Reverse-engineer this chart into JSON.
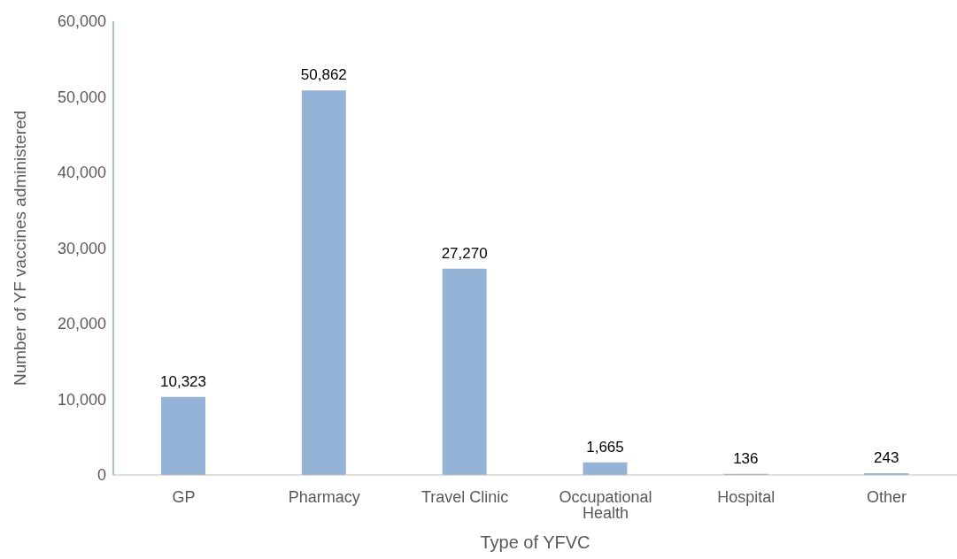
{
  "chart_data": {
    "type": "bar",
    "xlabel": "Type of YFVC",
    "ylabel": "Number of YF vaccines administered",
    "categories": [
      "GP",
      "Pharmacy",
      "Travel Clinic",
      "Occupational Health",
      "Hospital",
      "Other"
    ],
    "values": [
      10323,
      50862,
      27270,
      1665,
      136,
      243
    ],
    "color": "#95b3d7",
    "value_labels": [
      "10,323",
      "50,862",
      "27,270",
      "1,665",
      "136",
      "243"
    ],
    "ylim": [
      0,
      60000
    ],
    "yticks": [
      0,
      {
        "value": 10000,
        "label": "10,000"
      },
      {
        "value": 20000,
        "label": "20,000"
      },
      {
        "value": 30000,
        "label": "30,000"
      },
      {
        "value": 40000,
        "label": "40,000"
      },
      {
        "value": 50000,
        "label": "50,000"
      },
      {
        "value": 60000,
        "label": "60,000"
      }
    ],
    "grid": false
  }
}
